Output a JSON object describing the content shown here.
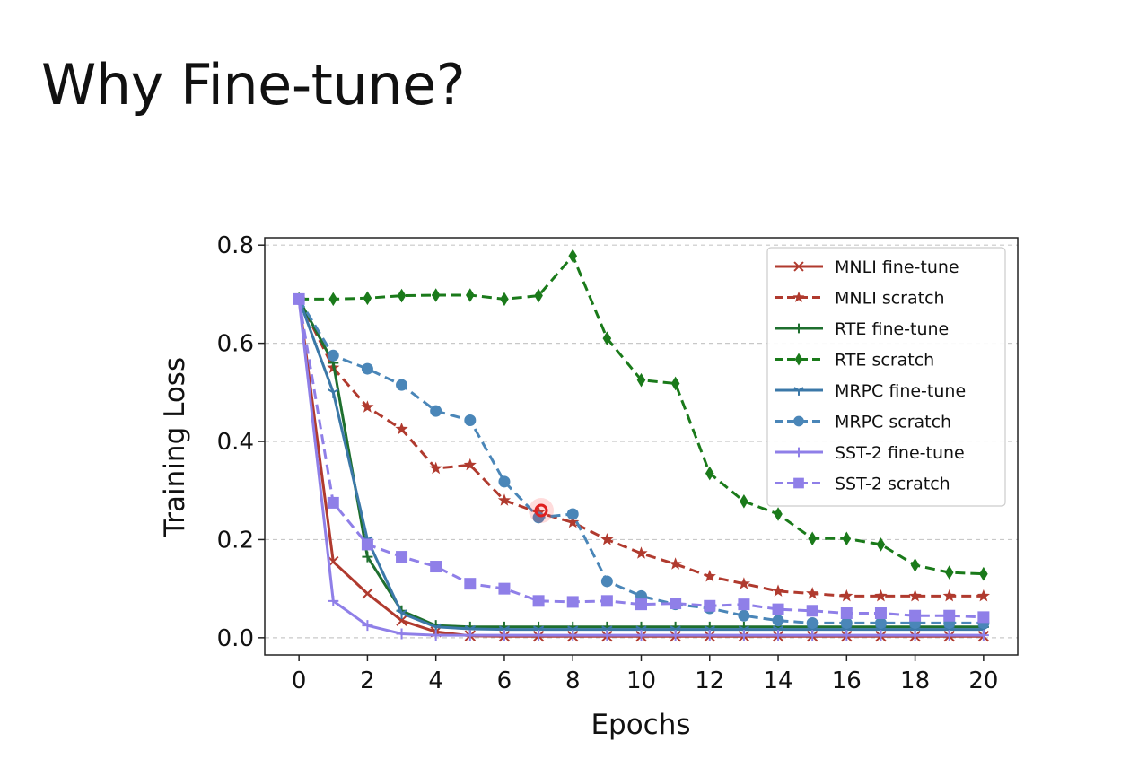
{
  "slide": {
    "title": "Why Fine-tune?"
  },
  "chart_data": {
    "type": "line",
    "title": "",
    "xlabel": "Epochs",
    "ylabel": "Training Loss",
    "xlim": [
      -1,
      21
    ],
    "ylim": [
      -0.035,
      0.815
    ],
    "xticks": [
      0,
      2,
      4,
      6,
      8,
      10,
      12,
      14,
      16,
      18,
      20
    ],
    "xtick_labels": [
      "0",
      "2",
      "4",
      "6",
      "8",
      "10",
      "12",
      "14",
      "16",
      "18",
      "20"
    ],
    "yticks": [
      0.0,
      0.2,
      0.4,
      0.6,
      0.8
    ],
    "ytick_labels": [
      "0.0",
      "0.2",
      "0.4",
      "0.6",
      "0.8"
    ],
    "grid": "horizontal dashed",
    "legend_position": "top-right",
    "x": [
      0,
      1,
      2,
      3,
      4,
      5,
      6,
      7,
      8,
      9,
      10,
      11,
      12,
      13,
      14,
      15,
      16,
      17,
      18,
      19,
      20
    ],
    "series": [
      {
        "name": "MNLI fine-tune",
        "color": "#b03a2e",
        "dash": false,
        "marker": "x",
        "values": [
          0.69,
          0.155,
          0.09,
          0.035,
          0.012,
          0.004,
          0.003,
          0.003,
          0.003,
          0.003,
          0.003,
          0.003,
          0.003,
          0.003,
          0.003,
          0.003,
          0.003,
          0.003,
          0.003,
          0.003,
          0.003
        ]
      },
      {
        "name": "MNLI scratch",
        "color": "#b03a2e",
        "dash": true,
        "marker": "star",
        "values": [
          0.69,
          0.55,
          0.47,
          0.425,
          0.345,
          0.352,
          0.28,
          0.255,
          0.235,
          0.2,
          0.172,
          0.15,
          0.125,
          0.11,
          0.095,
          0.09,
          0.085,
          0.085,
          0.085,
          0.085,
          0.085
        ]
      },
      {
        "name": "RTE fine-tune",
        "color": "#1e6f2e",
        "dash": false,
        "marker": "plus",
        "values": [
          0.69,
          0.56,
          0.165,
          0.055,
          0.025,
          0.022,
          0.022,
          0.022,
          0.022,
          0.022,
          0.022,
          0.022,
          0.022,
          0.022,
          0.022,
          0.022,
          0.022,
          0.022,
          0.022,
          0.022,
          0.022
        ]
      },
      {
        "name": "RTE scratch",
        "color": "#1a7a1a",
        "dash": true,
        "marker": "diamond",
        "values": [
          0.69,
          0.69,
          0.692,
          0.697,
          0.698,
          0.698,
          0.69,
          0.697,
          0.778,
          0.61,
          0.525,
          0.518,
          0.335,
          0.278,
          0.252,
          0.202,
          0.202,
          0.19,
          0.148,
          0.133,
          0.13
        ]
      },
      {
        "name": "MRPC fine-tune",
        "color": "#3b78a8",
        "dash": false,
        "marker": "tri",
        "values": [
          0.69,
          0.5,
          0.2,
          0.05,
          0.022,
          0.018,
          0.017,
          0.017,
          0.017,
          0.017,
          0.017,
          0.017,
          0.017,
          0.017,
          0.017,
          0.017,
          0.017,
          0.017,
          0.017,
          0.017,
          0.017
        ]
      },
      {
        "name": "MRPC scratch",
        "color": "#4a86b8",
        "dash": true,
        "marker": "circle",
        "values": [
          0.69,
          0.575,
          0.548,
          0.515,
          0.462,
          0.443,
          0.318,
          0.245,
          0.252,
          0.115,
          0.085,
          0.068,
          0.06,
          0.045,
          0.035,
          0.03,
          0.03,
          0.03,
          0.03,
          0.03,
          0.03
        ]
      },
      {
        "name": "SST-2 fine-tune",
        "color": "#8f7fe8",
        "dash": false,
        "marker": "plus",
        "values": [
          0.69,
          0.075,
          0.025,
          0.008,
          0.005,
          0.005,
          0.005,
          0.005,
          0.005,
          0.005,
          0.005,
          0.005,
          0.005,
          0.005,
          0.005,
          0.005,
          0.005,
          0.005,
          0.005,
          0.005,
          0.005
        ]
      },
      {
        "name": "SST-2 scratch",
        "color": "#8f7fe8",
        "dash": true,
        "marker": "square",
        "values": [
          0.69,
          0.275,
          0.19,
          0.165,
          0.145,
          0.11,
          0.1,
          0.075,
          0.073,
          0.075,
          0.068,
          0.07,
          0.065,
          0.068,
          0.058,
          0.055,
          0.05,
          0.05,
          0.045,
          0.045,
          0.042
        ]
      }
    ]
  }
}
